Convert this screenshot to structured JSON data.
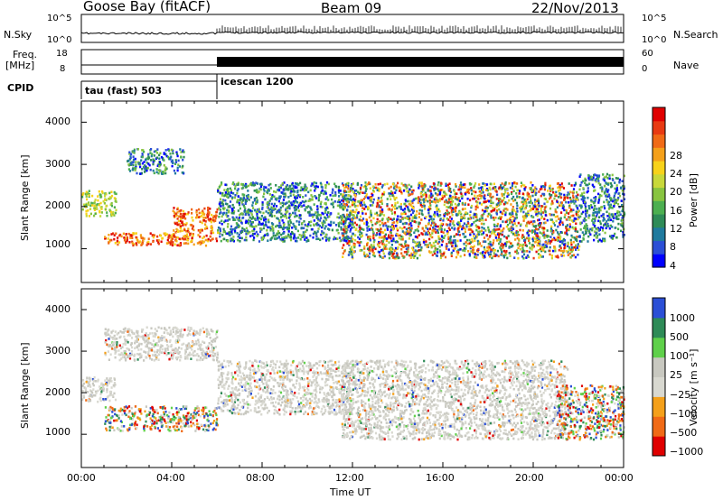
{
  "header": {
    "station": "Goose Bay (fitACF)",
    "beam": "Beam 09",
    "date": "22/Nov/2013"
  },
  "params": {
    "nsky_label": "N.Sky",
    "nsearch_label": "N.Search",
    "freq_label": "Freq.",
    "freq_unit": "[MHz]",
    "nave_label": "Nave",
    "cpid_label": "CPID",
    "left_ticks_n": [
      "10^5",
      "10^0"
    ],
    "right_ticks_n": [
      "10^5",
      "10^0"
    ],
    "left_ticks_f": [
      "18",
      "8"
    ],
    "right_ticks_f": [
      "60",
      "0"
    ]
  },
  "cpid": [
    {
      "name": "tau (fast) 503",
      "start_hour": 0
    },
    {
      "name": "icescan 1200",
      "start_hour": 6
    }
  ],
  "chart_data": [
    {
      "type": "heatmap",
      "parameter": "Power",
      "ylabel": "Slant Range [km]",
      "xlabel": "Time UT",
      "xlim": [
        0,
        24
      ],
      "ylim": [
        200,
        4500
      ],
      "yticks": [
        "4000",
        "3000",
        "2000",
        "1000"
      ],
      "xticks": [
        "00:00",
        "04:00",
        "08:00",
        "12:00",
        "16:00",
        "20:00",
        "00:00"
      ],
      "colorbar": {
        "label": "Power [dB]",
        "ticks": [
          "28",
          "24",
          "20",
          "16",
          "12",
          "8",
          "4"
        ],
        "colors": [
          "#0000ff",
          "#2b4fd6",
          "#1f7a9e",
          "#2e8b57",
          "#4caf50",
          "#88c440",
          "#c8d83a",
          "#f7d21a",
          "#f4a01a",
          "#f06a16",
          "#e83a12",
          "#e00000"
        ]
      },
      "regions": [
        {
          "t": [
            1.0,
            6.0
          ],
          "r": [
            1100,
            1400
          ],
          "level": "high"
        },
        {
          "t": [
            4.0,
            6.0
          ],
          "r": [
            1400,
            2000
          ],
          "level": "high"
        },
        {
          "t": [
            0.0,
            1.5
          ],
          "r": [
            1800,
            2400
          ],
          "level": "mid"
        },
        {
          "t": [
            2.0,
            4.5
          ],
          "r": [
            2800,
            3400
          ],
          "level": "low"
        },
        {
          "t": [
            6.0,
            12.0
          ],
          "r": [
            1200,
            2600
          ],
          "level": "low"
        },
        {
          "t": [
            11.5,
            22.0
          ],
          "r": [
            800,
            2600
          ],
          "level": "mixed"
        },
        {
          "t": [
            22.0,
            24.0
          ],
          "r": [
            1200,
            2800
          ],
          "level": "low"
        }
      ]
    },
    {
      "type": "heatmap",
      "parameter": "Velocity",
      "ylabel": "Slant Range [km]",
      "xlabel": "Time UT",
      "xlim": [
        0,
        24
      ],
      "ylim": [
        200,
        4500
      ],
      "yticks": [
        "4000",
        "3000",
        "2000",
        "1000"
      ],
      "xticks": [
        "00:00",
        "04:00",
        "08:00",
        "12:00",
        "16:00",
        "20:00",
        "00:00"
      ],
      "colorbar": {
        "label": "Velocity [m s⁻¹]",
        "ticks": [
          "1000",
          "500",
          "100",
          "25",
          "−25",
          "−100",
          "−500",
          "−1000"
        ],
        "colors": [
          "#e00000",
          "#f06a16",
          "#f4a01a",
          "#d8d8d0",
          "#c8c8c0",
          "#5fd04a",
          "#2e8b57",
          "#2b4fd6"
        ]
      },
      "regions": [
        {
          "t": [
            0.0,
            1.5
          ],
          "r": [
            1800,
            2400
          ],
          "level": "ground"
        },
        {
          "t": [
            1.0,
            6.0
          ],
          "r": [
            1100,
            1700
          ],
          "level": "positive"
        },
        {
          "t": [
            1.0,
            6.0
          ],
          "r": [
            2800,
            3600
          ],
          "level": "ground"
        },
        {
          "t": [
            6.0,
            12.0
          ],
          "r": [
            1500,
            2800
          ],
          "level": "ground"
        },
        {
          "t": [
            11.5,
            21.5
          ],
          "r": [
            900,
            2800
          ],
          "level": "ground"
        },
        {
          "t": [
            21.0,
            24.0
          ],
          "r": [
            900,
            2200
          ],
          "level": "positive"
        }
      ]
    }
  ]
}
